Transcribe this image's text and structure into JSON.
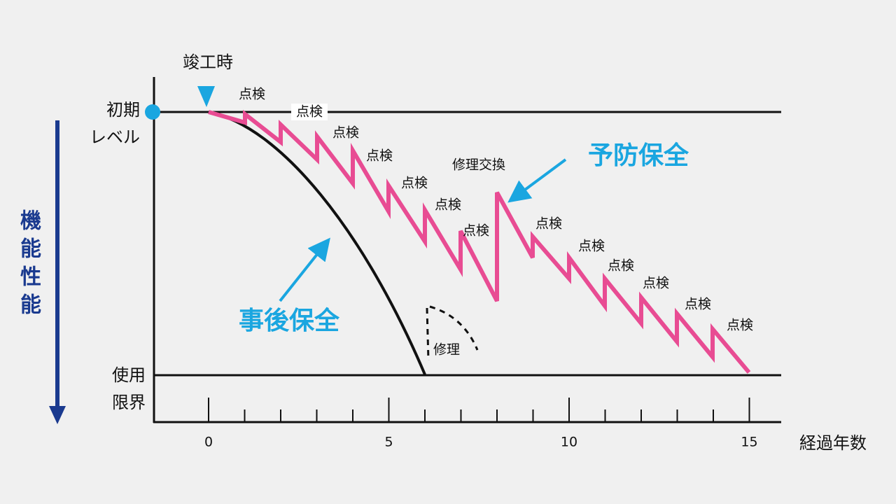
{
  "completion": "竣工時",
  "y_axis_label": [
    "機",
    "能",
    "性",
    "能"
  ],
  "initial_level": [
    "初期",
    "レベル"
  ],
  "usage_limit": [
    "使用",
    "限界"
  ],
  "x_axis_label": "経過年数",
  "x_ticks": [
    "0",
    "5",
    "10",
    "15"
  ],
  "inspection_labels": [
    "点検",
    "点検",
    "点検",
    "点検",
    "点検",
    "点検",
    "点検",
    "点検",
    "点検",
    "点検",
    "点検",
    "点検",
    "点検"
  ],
  "repair_exchange": "修理交換",
  "repair": "修理",
  "preventive_maintenance": "予防保全",
  "corrective_maintenance": "事後保全"
}
